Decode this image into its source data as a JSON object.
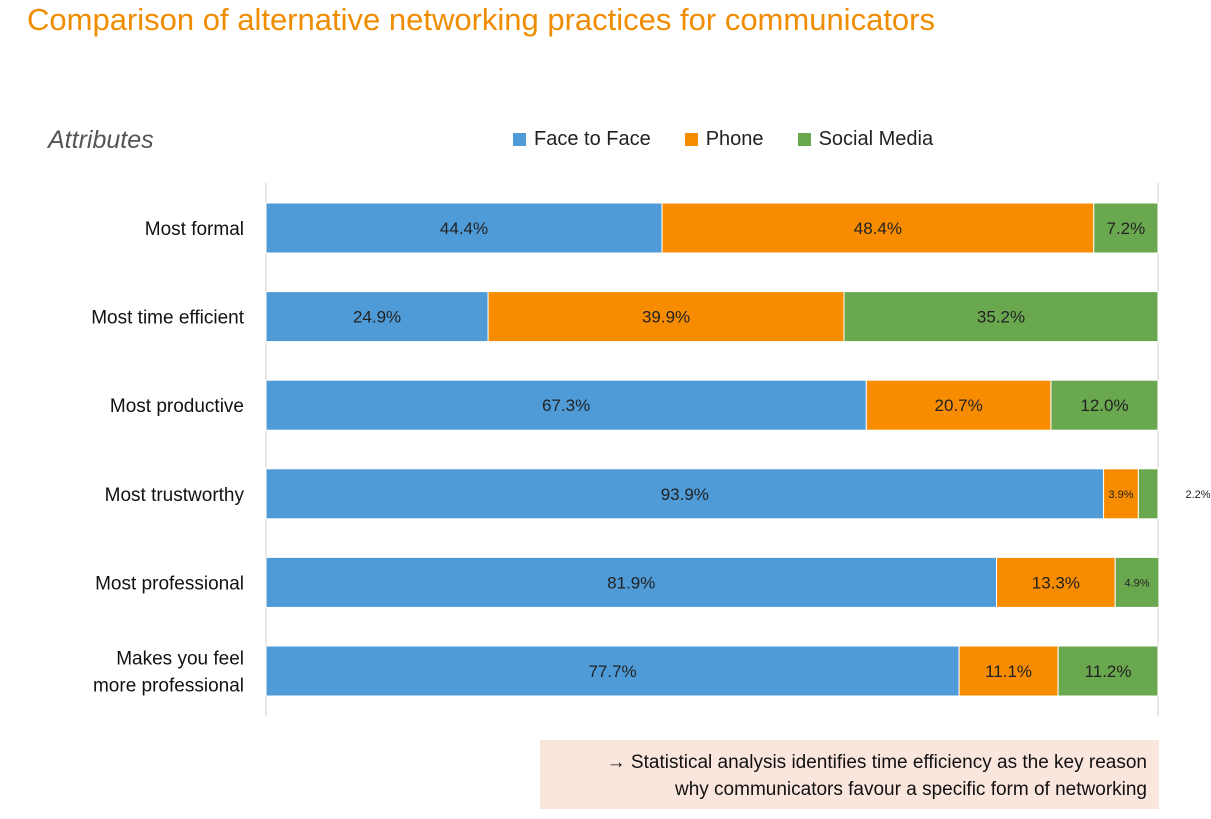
{
  "title": "Comparison of alternative networking practices for communicators",
  "attributes_heading": "Attributes",
  "note": {
    "line1": "→ Statistical analysis identifies time efficiency as the key reason",
    "line2": "why communicators favour a specific form of networking"
  },
  "chart_data": {
    "type": "bar",
    "orientation": "horizontal",
    "stacked": true,
    "percent": true,
    "categories": [
      [
        "Most formal"
      ],
      [
        "Most time efficient"
      ],
      [
        "Most productive"
      ],
      [
        "Most trustworthy"
      ],
      [
        "Most professional"
      ],
      [
        "Makes you feel",
        "more professional"
      ]
    ],
    "series": [
      {
        "name": "Face to Face",
        "color": "#4e9bd8",
        "values": [
          44.4,
          24.9,
          67.3,
          93.9,
          81.9,
          77.7
        ],
        "labels": [
          "44.4%",
          "24.9%",
          "67.3%",
          "93.9%",
          "81.9%",
          "77.7%"
        ]
      },
      {
        "name": "Phone",
        "color": "#f78c00",
        "values": [
          48.4,
          39.9,
          20.7,
          3.9,
          13.3,
          11.1
        ],
        "labels": [
          "48.4%",
          "39.9%",
          "20.7%",
          "3.9%",
          "13.3%",
          "11.1%"
        ]
      },
      {
        "name": "Social Media",
        "color": "#6aa84f",
        "values": [
          7.2,
          35.2,
          12.0,
          2.2,
          4.9,
          11.2
        ],
        "labels": [
          "7.2%",
          "35.2%",
          "12.0%",
          "2.2%",
          "4.9%",
          "11.2%"
        ]
      }
    ],
    "xlim": [
      0,
      100
    ],
    "grid": false,
    "legend": "top"
  }
}
